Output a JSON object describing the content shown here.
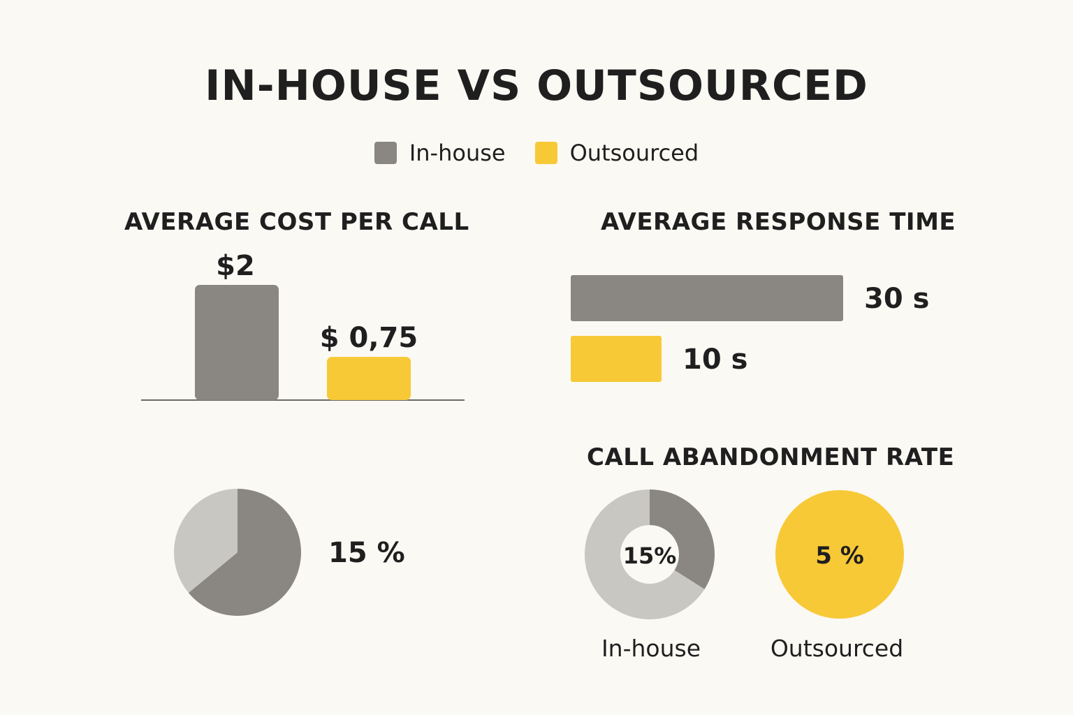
{
  "title": "IN-HOUSE VS OUTSOURCED",
  "colors": {
    "in_house": "#8a8782",
    "outsourced": "#f8c936",
    "light_gray": "#c9c7c2",
    "background": "#fbf9f4"
  },
  "legend": [
    {
      "label": "In-house",
      "color": "#8a8782"
    },
    {
      "label": "Outsourced",
      "color": "#f8c936"
    }
  ],
  "chart_data": [
    {
      "type": "bar",
      "title": "AVERAGE COST PER CALL",
      "categories": [
        "In-house",
        "Outsourced"
      ],
      "values": [
        2,
        0.75
      ],
      "labels": [
        "$2",
        "$ 0,75"
      ],
      "ylim": [
        0,
        2.4
      ]
    },
    {
      "type": "bar",
      "orientation": "horizontal",
      "title": "AVERAGE RESPONSE TIME",
      "categories": [
        "In-house",
        "Outsourced"
      ],
      "values": [
        30,
        10
      ],
      "labels": [
        "30 s",
        "10 s"
      ],
      "xlim": [
        0,
        30
      ]
    },
    {
      "type": "pie",
      "title": "",
      "slices": [
        {
          "label": "dark",
          "value": 0.64,
          "color": "#8a8782"
        },
        {
          "label": "light",
          "value": 0.36,
          "color": "#c9c7c2"
        }
      ],
      "label": "15 %"
    },
    {
      "type": "pie",
      "title": "CALL ABANDONMENT RATE",
      "charts": [
        {
          "name": "In-house",
          "center_label": "15%",
          "donut": true,
          "slices": [
            {
              "value": 0.34,
              "color": "#8a8782"
            },
            {
              "value": 0.66,
              "color": "#c9c7c2"
            }
          ]
        },
        {
          "name": "Outsourced",
          "center_label": "5 %",
          "donut": false,
          "slices": [
            {
              "value": 1.0,
              "color": "#f8c936"
            }
          ]
        }
      ]
    }
  ]
}
